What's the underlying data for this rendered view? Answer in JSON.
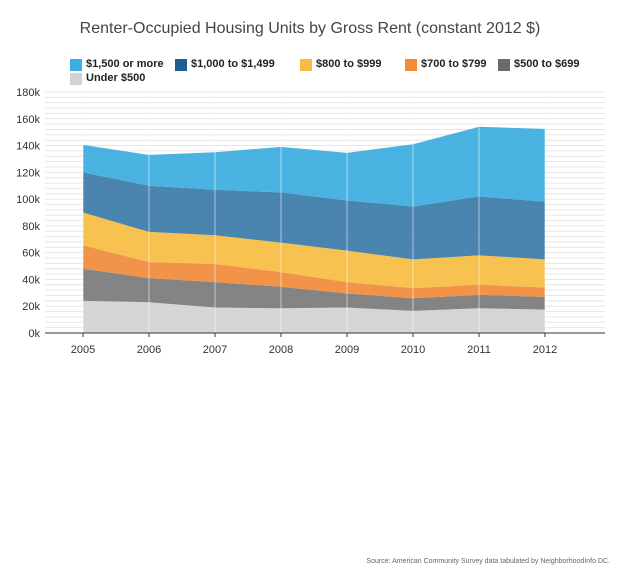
{
  "chart_data": {
    "type": "area",
    "stacked": true,
    "title": "Renter-Occupied Housing Units by Gross Rent (constant 2012 $)",
    "x": [
      2005,
      2006,
      2007,
      2008,
      2009,
      2010,
      2011,
      2012
    ],
    "x_tick_labels": [
      "2005",
      "2006",
      "2007",
      "2008",
      "2009",
      "2010",
      "2011",
      "2012"
    ],
    "y_tick_labels": [
      "0k",
      "20k",
      "40k",
      "60k",
      "80k",
      "100k",
      "120k",
      "140k",
      "160k",
      "180k"
    ],
    "ylim": [
      0,
      180000
    ],
    "grid": true,
    "legend_placement": "top",
    "series": [
      {
        "name": "Under $500",
        "color": "#d3d3d3",
        "values": [
          24000,
          23000,
          19000,
          18500,
          19000,
          16500,
          18500,
          17500
        ]
      },
      {
        "name": "$500 to $699",
        "color": "#7a7a7a",
        "values": [
          24000,
          18000,
          19000,
          16000,
          10500,
          9500,
          10000,
          9500
        ]
      },
      {
        "name": "$700 to $799",
        "color": "#f08b3a",
        "values": [
          17500,
          12000,
          13500,
          11000,
          8500,
          7500,
          7500,
          7000
        ]
      },
      {
        "name": "$800 to $999",
        "color": "#f7bd42",
        "values": [
          24500,
          22500,
          21500,
          22000,
          23500,
          21500,
          22000,
          21000
        ]
      },
      {
        "name": "$1,000 to $1,499",
        "color": "#3a7ba8",
        "values": [
          30000,
          34500,
          34000,
          37500,
          37500,
          39500,
          44000,
          43000
        ]
      },
      {
        "name": "$1,500 or more",
        "color": "#3badde",
        "values": [
          20500,
          23000,
          28000,
          34000,
          35500,
          46500,
          52000,
          54500
        ]
      }
    ],
    "source": "Source: American Community Survey data tabulated by NeighborhoodInfo DC."
  },
  "legend": {
    "rows": [
      [
        "$1,500 or more",
        "$1,000 to $1,499",
        "$800 to $999",
        "$700 to $799",
        "$500 to $699"
      ],
      [
        "Under $500"
      ]
    ],
    "colors": {
      "$1,500 or more": "#3badde",
      "$1,000 to $1,499": "#1f5f8f",
      "$800 to $999": "#f7bd42",
      "$700 to $799": "#f08b3a",
      "$500 to $699": "#6b6b6b",
      "Under $500": "#d3d3d3"
    }
  }
}
